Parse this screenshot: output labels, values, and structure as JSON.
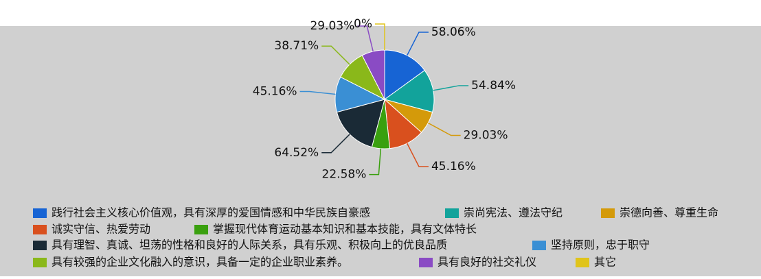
{
  "chart_data": {
    "type": "pie",
    "categories": [
      "践行社会主义核心价值观，具有深厚的爱国情感和中华民族自豪感",
      "崇尚宪法、遵法守纪",
      "崇德向善、尊重生命",
      "诚实守信、热爱劳动",
      "掌握现代体育运动基本知识和基本技能，具有文体特长",
      "具有理智、真诚、坦荡的性格和良好的人际关系，具有乐观、积极向上的优良品质",
      "坚持原则，忠于职守",
      "具有较强的企业文化融入的意识，具备一定的企业职业素养。",
      "具有良好的社交礼仪",
      "其它"
    ],
    "values": [
      58.06,
      54.84,
      29.03,
      45.16,
      22.58,
      64.52,
      45.16,
      38.71,
      29.03,
      0
    ],
    "value_labels": [
      "58.06%",
      "54.84%",
      "29.03%",
      "45.16%",
      "22.58%",
      "64.52%",
      "45.16%",
      "38.71%",
      "29.03%",
      "0%"
    ],
    "colors": [
      "#1764d4",
      "#12a39b",
      "#d49a0a",
      "#d9501e",
      "#3aa00f",
      "#1a2a36",
      "#3a8fd4",
      "#8ab81a",
      "#8a4bc4",
      "#e0c41a"
    ]
  }
}
